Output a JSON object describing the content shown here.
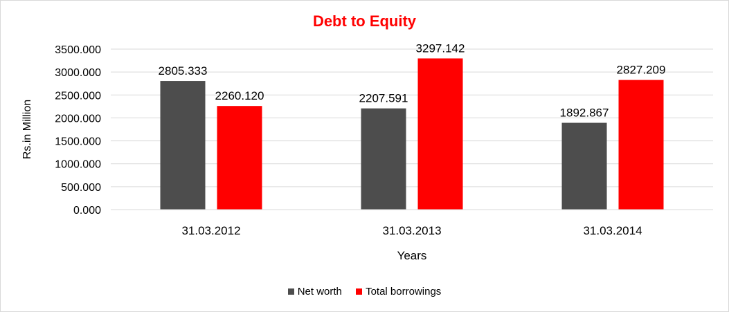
{
  "chart_data": {
    "type": "bar",
    "title": "Debt to Equity",
    "xlabel": "Years",
    "ylabel": "Rs.in Million",
    "categories": [
      "31.03.2012",
      "31.03.2013",
      "31.03.2014"
    ],
    "series": [
      {
        "name": "Net worth",
        "color": "#4d4d4d",
        "values": [
          2805.333,
          2207.591,
          1892.867
        ],
        "labels": [
          "2805.333",
          "2207.591",
          "1892.867"
        ]
      },
      {
        "name": "Total borrowings",
        "color": "#ff0000",
        "values": [
          2260.12,
          3297.142,
          2827.209
        ],
        "labels": [
          "2260.120",
          "3297.142",
          "2827.209"
        ]
      }
    ],
    "ylim": [
      0,
      3500
    ],
    "yticks": [
      0,
      500,
      1000,
      1500,
      2000,
      2500,
      3000,
      3500
    ],
    "ytick_labels": [
      "0.000",
      "500.000",
      "1000.000",
      "1500.000",
      "2000.000",
      "2500.000",
      "3000.000",
      "3500.000"
    ],
    "grid": true,
    "legend_position": "bottom"
  }
}
